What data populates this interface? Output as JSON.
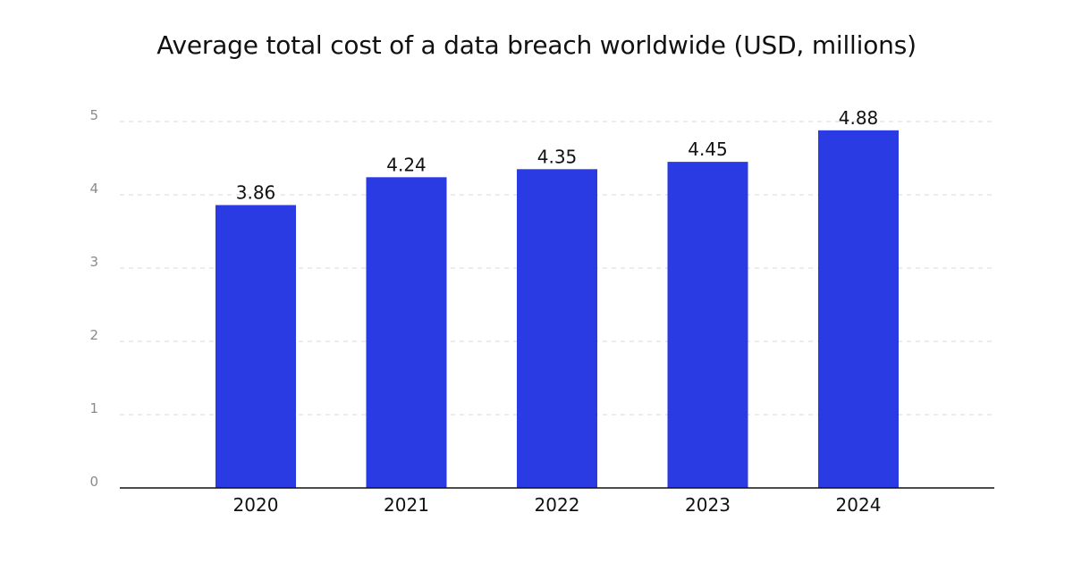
{
  "chart_data": {
    "type": "bar",
    "title": "Average total cost of a data breach worldwide (USD, millions)",
    "xlabel": "",
    "ylabel": "",
    "categories": [
      "2020",
      "2021",
      "2022",
      "2023",
      "2024"
    ],
    "values": [
      3.86,
      4.24,
      4.35,
      4.45,
      4.88
    ],
    "data_labels": [
      "3.86",
      "4.24",
      "4.35",
      "4.45",
      "4.88"
    ],
    "yticks": [
      0,
      1,
      2,
      3,
      4,
      5
    ],
    "ytick_labels": [
      "0",
      "1",
      "2",
      "3",
      "4",
      "5"
    ],
    "ylim": [
      0,
      5
    ],
    "grid": true,
    "bar_color": "#2a3be3",
    "grid_color": "#d9d9d9",
    "axis_color": "#111111"
  }
}
